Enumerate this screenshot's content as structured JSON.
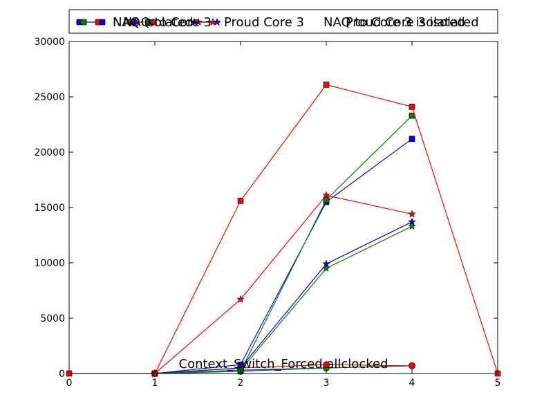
{
  "chart_data": {
    "type": "line",
    "title": "Context_Switch_Forced allclocked",
    "xlabel": "",
    "ylabel": "",
    "xlim": [
      0,
      5
    ],
    "ylim": [
      0,
      30000
    ],
    "xticks": [
      0,
      1,
      2,
      3,
      4,
      5
    ],
    "yticks": [
      0,
      5000,
      10000,
      15000,
      20000,
      25000,
      30000
    ],
    "grid": false,
    "legend_position": "top",
    "series": [
      {
        "name": "NAQ",
        "color": "#0000ff",
        "marker": "square",
        "x": [
          1,
          2,
          3,
          4
        ],
        "y": [
          0,
          800,
          15500,
          21200
        ]
      },
      {
        "name": "NAQ isolated",
        "color": "#008000",
        "marker": "square",
        "x": [
          1,
          2,
          3,
          4
        ],
        "y": [
          0,
          200,
          15700,
          23300
        ]
      },
      {
        "name": "NAQ to Core 3",
        "color": "#ff0000",
        "marker": "square",
        "x": [
          0,
          1,
          2,
          3,
          4,
          5
        ],
        "y": [
          0,
          0,
          15600,
          26100,
          24100,
          0
        ]
      },
      {
        "name": "Proud Core 3",
        "color": "#0000ff",
        "marker": "circle",
        "x": [
          1,
          2,
          3,
          4
        ],
        "y": [
          0,
          300,
          500,
          700
        ]
      },
      {
        "name": "Proud Core 3 isolated",
        "color": "#008000",
        "marker": "circle",
        "x": [
          1,
          2,
          3,
          4
        ],
        "y": [
          0,
          200,
          500,
          700
        ]
      },
      {
        "name": "NAQ to Core 3 isolated",
        "color": "#ff0000",
        "marker": "circle",
        "x": [
          1,
          2,
          3,
          4
        ],
        "y": [
          0,
          500,
          800,
          700
        ]
      },
      {
        "name": "Proud Core 3",
        "color": "#0000ff",
        "marker": "star",
        "x": [
          1,
          2,
          3,
          4
        ],
        "y": [
          0,
          500,
          9900,
          13700
        ]
      },
      {
        "name": "Proud Core 3 isolated",
        "color": "#008000",
        "marker": "star",
        "x": [
          1,
          2,
          3,
          4
        ],
        "y": [
          0,
          300,
          9500,
          13300
        ]
      },
      {
        "name": "NAQ to Core 3 isolated",
        "color": "#ff0000",
        "marker": "star",
        "x": [
          1,
          2,
          3,
          4
        ],
        "y": [
          0,
          6700,
          16100,
          14400
        ]
      }
    ],
    "legend_texts": [
      "NAQ",
      "NAQ isolated",
      "NAQ to Core 3",
      "Proud Core 3",
      "Proud Core 3 isolated",
      "NAQ to Core 3 isolated"
    ],
    "legend_markers": [
      {
        "marker": "square",
        "colors": [
          "#0000ff",
          "#008000",
          "#ff0000"
        ]
      },
      {
        "marker": "circle",
        "colors": [
          "#ff0000",
          "#0000ff",
          "#008000"
        ]
      },
      {
        "marker": "star",
        "colors": [
          "#0000ff",
          "#ff0000",
          "#ff0000"
        ]
      }
    ]
  }
}
